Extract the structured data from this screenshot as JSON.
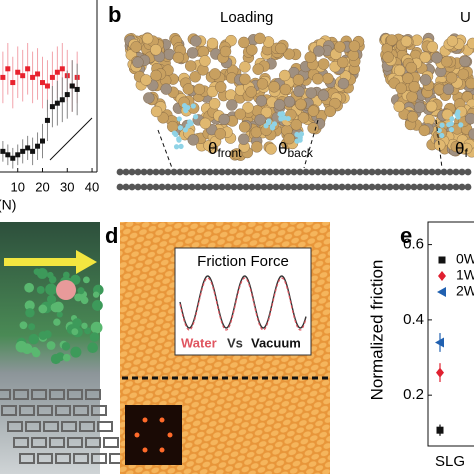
{
  "panels": {
    "b": {
      "label": "b",
      "left_title": "Loading",
      "right_title": "U",
      "theta_front": "θ",
      "theta_front_sub": "front",
      "theta_back": "θ",
      "theta_back_sub": "back",
      "theta_right": "θ",
      "theta_right_sub": "f"
    },
    "d": {
      "label": "d",
      "inset_title": "Friction Force",
      "legend_water": "Water",
      "legend_vs": "Vs",
      "legend_vacuum": "Vacuum"
    },
    "e": {
      "label": "e"
    }
  },
  "chart_data": [
    {
      "type": "scatter",
      "x_label": "(N)",
      "xlim": [
        -2,
        42
      ],
      "xticks": [
        10,
        20,
        30,
        40
      ],
      "ylim": [
        0,
        1
      ],
      "series": [
        {
          "color": "#e8222e",
          "error_color": "#f2a3ab",
          "x": [
            4,
            6,
            8,
            10,
            12,
            14,
            16,
            18,
            20,
            22,
            24,
            26,
            28,
            30,
            32,
            34
          ],
          "values": [
            0.55,
            0.6,
            0.52,
            0.58,
            0.56,
            0.6,
            0.55,
            0.57,
            0.52,
            0.5,
            0.55,
            0.58,
            0.6,
            0.56,
            0.5,
            0.55
          ],
          "errors": [
            0.15,
            0.15,
            0.15,
            0.15,
            0.15,
            0.15,
            0.15,
            0.15,
            0.15,
            0.15,
            0.15,
            0.15,
            0.15,
            0.15,
            0.15,
            0.15
          ]
        },
        {
          "color": "#111111",
          "error_color": "#888888",
          "x": [
            4,
            6,
            8,
            10,
            12,
            14,
            16,
            18,
            20,
            22,
            24,
            26,
            28,
            30,
            32,
            34
          ],
          "values": [
            0.12,
            0.1,
            0.08,
            0.1,
            0.12,
            0.14,
            0.12,
            0.15,
            0.18,
            0.3,
            0.38,
            0.4,
            0.42,
            0.45,
            0.5,
            0.48
          ],
          "errors": [
            0.06,
            0.06,
            0.06,
            0.06,
            0.07,
            0.07,
            0.08,
            0.08,
            0.1,
            0.12,
            0.12,
            0.13,
            0.13,
            0.14,
            0.15,
            0.15
          ]
        }
      ]
    },
    {
      "type": "scatter",
      "y_label": "Normalized friction",
      "categories": [
        "SLG"
      ],
      "ylim": [
        0.065,
        0.66
      ],
      "yticks": [
        0.2,
        0.4,
        0.6
      ],
      "series": [
        {
          "name": "0W",
          "color": "#111111",
          "marker": "square",
          "values": [
            0.107
          ],
          "errors": [
            0.015
          ]
        },
        {
          "name": "1W",
          "color": "#e02030",
          "marker": "diamond",
          "values": [
            0.26
          ],
          "errors": [
            0.025
          ]
        },
        {
          "name": "2W",
          "color": "#2060b0",
          "marker": "triangle",
          "values": [
            0.34
          ],
          "errors": [
            0.025
          ]
        }
      ]
    }
  ]
}
